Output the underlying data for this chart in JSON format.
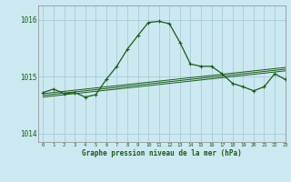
{
  "title": "Graphe pression niveau de la mer (hPa)",
  "bg_color": "#cce8f0",
  "grid_color": "#aaccd8",
  "line_color": "#1a5c1a",
  "xlim": [
    -0.5,
    23
  ],
  "ylim": [
    1013.85,
    1016.25
  ],
  "yticks": [
    1014,
    1015,
    1016
  ],
  "xticks": [
    0,
    1,
    2,
    3,
    4,
    5,
    6,
    7,
    8,
    9,
    10,
    11,
    12,
    13,
    14,
    15,
    16,
    17,
    18,
    19,
    20,
    21,
    22,
    23
  ],
  "hours": [
    0,
    1,
    2,
    3,
    4,
    5,
    6,
    7,
    8,
    9,
    10,
    11,
    12,
    13,
    14,
    15,
    16,
    17,
    18,
    19,
    20,
    21,
    22,
    23
  ],
  "main_series": [
    1014.72,
    1014.78,
    1014.7,
    1014.72,
    1014.64,
    1014.68,
    1014.95,
    1015.18,
    1015.48,
    1015.72,
    1015.95,
    1015.97,
    1015.93,
    1015.6,
    1015.22,
    1015.18,
    1015.18,
    1015.05,
    1014.88,
    1014.82,
    1014.75,
    1014.82,
    1015.05,
    1014.95
  ],
  "trend1": [
    1014.7,
    1014.72,
    1014.74,
    1014.76,
    1014.78,
    1014.8,
    1014.82,
    1014.84,
    1014.86,
    1014.88,
    1014.9,
    1014.92,
    1014.94,
    1014.96,
    1014.98,
    1015.0,
    1015.02,
    1015.04,
    1015.06,
    1015.08,
    1015.1,
    1015.12,
    1015.14,
    1015.16
  ],
  "trend2": [
    1014.67,
    1014.69,
    1014.71,
    1014.73,
    1014.75,
    1014.77,
    1014.79,
    1014.81,
    1014.83,
    1014.85,
    1014.87,
    1014.89,
    1014.91,
    1014.93,
    1014.95,
    1014.97,
    1014.99,
    1015.01,
    1015.03,
    1015.05,
    1015.07,
    1015.09,
    1015.11,
    1015.13
  ],
  "trend3": [
    1014.64,
    1014.66,
    1014.68,
    1014.7,
    1014.72,
    1014.74,
    1014.76,
    1014.78,
    1014.8,
    1014.82,
    1014.84,
    1014.86,
    1014.88,
    1014.9,
    1014.92,
    1014.94,
    1014.96,
    1014.98,
    1015.0,
    1015.02,
    1015.04,
    1015.06,
    1015.08,
    1015.1
  ]
}
